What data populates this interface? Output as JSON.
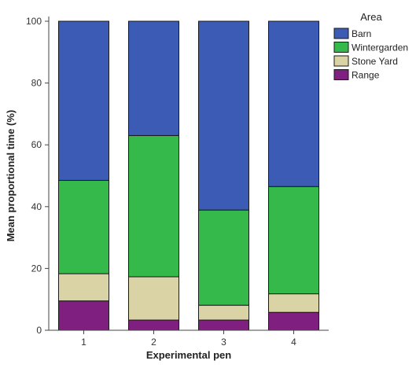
{
  "chart_data": {
    "type": "bar",
    "stacked": true,
    "categories": [
      "1",
      "2",
      "3",
      "4"
    ],
    "series": [
      {
        "name": "Range",
        "values": [
          9.5,
          3.3,
          3.3,
          5.8
        ],
        "color": "#7f1f7f"
      },
      {
        "name": "Stone Yard",
        "values": [
          8.8,
          14.0,
          4.8,
          6.0
        ],
        "color": "#d9d3a6"
      },
      {
        "name": "Wintergarden",
        "values": [
          30.2,
          45.7,
          30.8,
          34.7
        ],
        "color": "#35b94a"
      },
      {
        "name": "Barn",
        "values": [
          51.5,
          37.0,
          61.1,
          53.5
        ],
        "color": "#3c5bb4"
      }
    ],
    "legend_order": [
      "Barn",
      "Wintergarden",
      "Stone Yard",
      "Range"
    ],
    "legend_title": "Area",
    "legend_position": "top-right",
    "xlabel": "Experimental pen",
    "ylabel": "Mean proportional time (%)",
    "ylim": [
      0,
      100
    ],
    "yticks": [
      "0",
      "20",
      "40",
      "60",
      "80",
      "100"
    ],
    "grid": false
  }
}
